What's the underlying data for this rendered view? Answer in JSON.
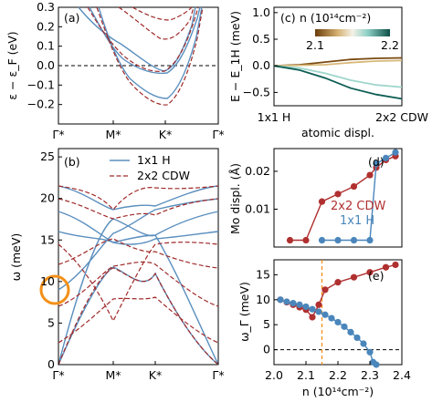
{
  "chart_data": [
    {
      "panel": "(a)",
      "type": "line",
      "ylabel": "ε − ε_F (eV)",
      "ylim": [
        -0.3,
        0.3
      ],
      "yticks": [
        "−0.2",
        "−0.1",
        "0.0",
        "0.1",
        "0.2",
        "0.3"
      ],
      "xticks": [
        "Γ*",
        "M*",
        "K*",
        "Γ*"
      ],
      "series": [
        {
          "name": "1x1 H",
          "color": "#5b8fbe"
        },
        {
          "name": "2x2 CDW",
          "color": "#a02a2a"
        }
      ]
    },
    {
      "panel": "(b)",
      "type": "line",
      "ylabel": "ω (meV)",
      "ylim": [
        0,
        26
      ],
      "yticks": [
        "0",
        "5",
        "10",
        "15",
        "20",
        "25"
      ],
      "xticks": [
        "Γ*",
        "M*",
        "K*",
        "Γ*"
      ],
      "legend": [
        "1x1 H",
        "2x2 CDW"
      ],
      "legend_position": "top-right"
    },
    {
      "panel": "(c)",
      "type": "line",
      "ylabel": "E − E_1H (meV)",
      "xticks": [
        "1x1 H",
        "2x2 CDW"
      ],
      "xlabel": "atomic displ.",
      "ylim": [
        -0.75,
        1.1
      ],
      "yticks": [
        "−0.5",
        "0.0",
        "0.5",
        "1.0"
      ],
      "colorbar": {
        "title": "n (10¹⁴cm⁻²)",
        "min": "2.1",
        "max": "2.2"
      },
      "series": [
        {
          "name": "2.10",
          "color": "#7a4a10",
          "values": [
            0,
            0.02,
            0.07,
            0.12,
            0.14,
            0.15
          ]
        },
        {
          "name": "2.13",
          "color": "#d8b878",
          "values": [
            0,
            0.01,
            0.02,
            0.06,
            0.09,
            0.1
          ]
        },
        {
          "name": "2.16",
          "color": "#9fd6cc",
          "values": [
            0,
            -0.04,
            -0.14,
            -0.27,
            -0.36,
            -0.4
          ]
        },
        {
          "name": "2.20",
          "color": "#0d5e54",
          "values": [
            0,
            -0.08,
            -0.23,
            -0.42,
            -0.54,
            -0.62
          ]
        }
      ]
    },
    {
      "panel": "(d)",
      "type": "scatter",
      "ylabel": "Mo displ. (Å)",
      "ylim": [
        0,
        0.026
      ],
      "yticks": [
        "0.01",
        "0.02"
      ],
      "xlim": [
        2.0,
        2.4
      ],
      "series": [
        {
          "name": "2x2 CDW",
          "color": "#b03030",
          "x": [
            2.05,
            2.1,
            2.15,
            2.2,
            2.25,
            2.3,
            2.32,
            2.35,
            2.38
          ],
          "y": [
            0.0018,
            0.0018,
            0.012,
            0.014,
            0.016,
            0.019,
            0.021,
            0.023,
            0.024
          ]
        },
        {
          "name": "1x1 H",
          "color": "#4a86bb",
          "x": [
            2.15,
            2.2,
            2.25,
            2.3,
            2.32,
            2.35,
            2.38
          ],
          "y": [
            0.0018,
            0.0018,
            0.0018,
            0.0018,
            0.022,
            0.0235,
            0.025
          ]
        }
      ],
      "labels": [
        "2x2 CDW",
        "1x1 H"
      ]
    },
    {
      "panel": "(e)",
      "type": "scatter",
      "ylabel": "ω_Γ (meV)",
      "xlabel": "n (10¹⁴cm⁻²)",
      "ylim": [
        -3,
        18
      ],
      "yticks": [
        "0",
        "5",
        "10",
        "15"
      ],
      "xlim": [
        2.0,
        2.4
      ],
      "xticks": [
        "2.0",
        "2.1",
        "2.2",
        "2.3",
        "2.4"
      ],
      "vline": 2.15,
      "series": [
        {
          "name": "2x2 CDW",
          "color": "#b03030",
          "x": [
            2.02,
            2.04,
            2.06,
            2.08,
            2.1,
            2.12,
            2.14,
            2.16,
            2.2,
            2.25,
            2.3,
            2.35,
            2.38
          ],
          "y": [
            10,
            9.5,
            9,
            8.5,
            8,
            6.5,
            9,
            12,
            13.5,
            14.5,
            15.5,
            16.5,
            17
          ]
        },
        {
          "name": "1x1 H",
          "color": "#4a86bb",
          "x": [
            2.02,
            2.04,
            2.06,
            2.08,
            2.1,
            2.12,
            2.14,
            2.16,
            2.18,
            2.2,
            2.22,
            2.24,
            2.26,
            2.28,
            2.3,
            2.31,
            2.32
          ],
          "y": [
            10,
            9.6,
            9.3,
            9,
            8.6,
            8.1,
            7.6,
            7,
            6.3,
            5.5,
            4.6,
            3.5,
            2.4,
            1.2,
            -0.5,
            -2.5,
            -3
          ]
        }
      ]
    }
  ]
}
